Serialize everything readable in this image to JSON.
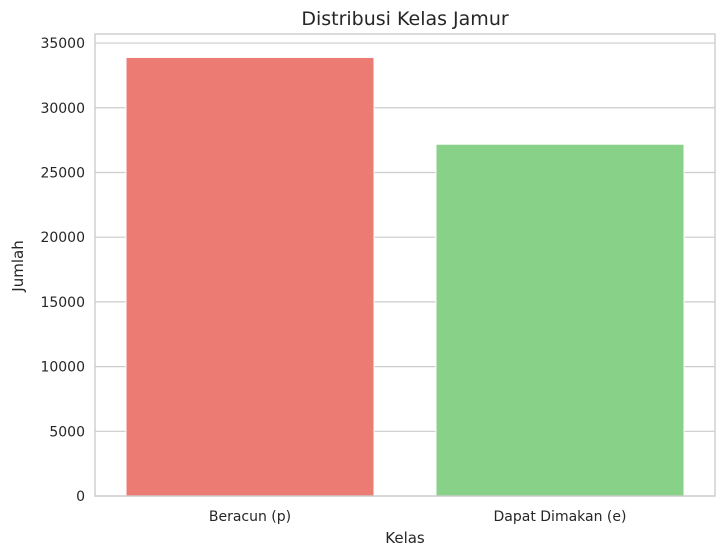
{
  "chart_data": {
    "type": "bar",
    "title": "Distribusi Kelas Jamur",
    "xlabel": "Kelas",
    "ylabel": "Jumlah",
    "categories": [
      "Beracun (p)",
      "Dapat Dimakan (e)"
    ],
    "values": [
      33888,
      27181
    ],
    "colors": [
      "#ec7b74",
      "#88d188"
    ],
    "ylim": [
      0,
      35700
    ],
    "yticks": [
      0,
      5000,
      10000,
      15000,
      20000,
      25000,
      30000,
      35000
    ],
    "ytick_labels": [
      "0",
      "5000",
      "10000",
      "15000",
      "20000",
      "25000",
      "30000",
      "35000"
    ],
    "grid": true,
    "grid_axis": "y"
  }
}
